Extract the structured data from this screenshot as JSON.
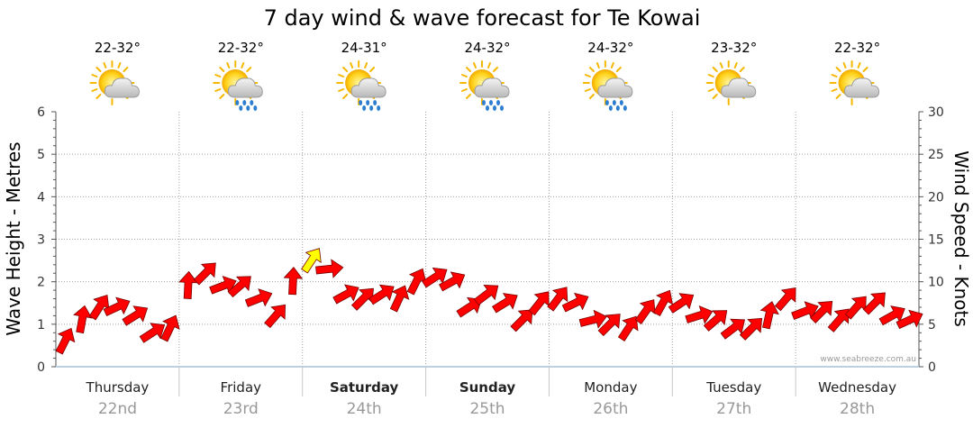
{
  "chart_data": {
    "type": "line",
    "title": "7 day wind & wave forecast for Te Kowai",
    "ylabel_left": "Wave Height - Metres",
    "ylabel_right": "Wind Speed - Knots",
    "ylim_left": [
      0,
      6
    ],
    "ylim_right": [
      0,
      30
    ],
    "yticks_left": [
      "0",
      "1",
      "2",
      "3",
      "4",
      "5",
      "6"
    ],
    "yticks_right": [
      "0",
      "5",
      "10",
      "15",
      "20",
      "25",
      "30"
    ],
    "grid": true,
    "watermark": "www.seabreeze.com.au",
    "days": [
      {
        "name": "Thursday",
        "date": "22nd",
        "bold": false,
        "temp": "22-32°",
        "icon": "partly-cloudy-icon"
      },
      {
        "name": "Friday",
        "date": "23rd",
        "bold": false,
        "temp": "22-32°",
        "icon": "partly-cloudy-rain-icon"
      },
      {
        "name": "Saturday",
        "date": "24th",
        "bold": true,
        "temp": "24-31°",
        "icon": "partly-cloudy-rain-icon"
      },
      {
        "name": "Sunday",
        "date": "25th",
        "bold": true,
        "temp": "24-32°",
        "icon": "partly-cloudy-rain-icon"
      },
      {
        "name": "Monday",
        "date": "26th",
        "bold": false,
        "temp": "24-32°",
        "icon": "partly-cloudy-rain-icon"
      },
      {
        "name": "Tuesday",
        "date": "27th",
        "bold": false,
        "temp": "23-32°",
        "icon": "partly-cloudy-icon"
      },
      {
        "name": "Wednesday",
        "date": "28th",
        "bold": false,
        "temp": "22-32°",
        "icon": "partly-cloudy-icon"
      }
    ],
    "series": [
      {
        "name": "Wind",
        "unit": "knots",
        "color": "#ff0000",
        "highlight_color": "#ffff00",
        "x_day": [
          0,
          0.14,
          0.28,
          0.42,
          0.57,
          0.71,
          0.85,
          1.0,
          1.14,
          1.28,
          1.42,
          1.57,
          1.71,
          1.85,
          2.0,
          2.14,
          2.28,
          2.42,
          2.57,
          2.71,
          2.85,
          3.0,
          3.14,
          3.28,
          3.42,
          3.57,
          3.71,
          3.85,
          4.0,
          4.14,
          4.28,
          4.42,
          4.57,
          4.71,
          4.85,
          5.0,
          5.14,
          5.28,
          5.42,
          5.57,
          5.71,
          5.85,
          6.0,
          6.14,
          6.28,
          6.42,
          6.57,
          6.71,
          6.85
        ],
        "values": [
          3,
          5.5,
          7,
          7,
          6,
          4,
          4.5,
          9.5,
          11,
          9.5,
          9.5,
          8,
          6,
          10,
          12.5,
          11.5,
          8.5,
          8,
          8.5,
          8,
          10,
          10.5,
          10,
          7,
          8.5,
          7.5,
          5.5,
          7.5,
          8,
          7.5,
          5.5,
          5,
          4.5,
          6.5,
          7.5,
          7.5,
          6,
          5.5,
          4.5,
          4.5,
          6,
          8,
          6.5,
          6.5,
          5.5,
          7,
          7.5,
          6,
          5.5
        ],
        "highlight_indices": [
          14
        ]
      }
    ]
  }
}
